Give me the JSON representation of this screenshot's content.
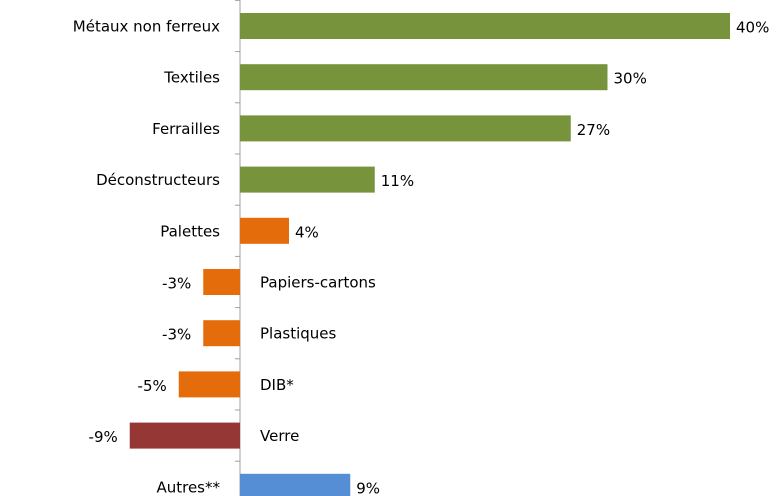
{
  "chart_data": {
    "type": "bar",
    "orientation": "horizontal",
    "categories": [
      "Métaux non ferreux",
      "Textiles",
      "Ferrailles",
      "Déconstructeurs",
      "Palettes",
      "Papiers-cartons",
      "Plastiques",
      "DIB*",
      "Verre",
      "Autres**"
    ],
    "values": [
      40,
      30,
      27,
      11,
      4,
      -3,
      -3,
      -5,
      -9,
      9
    ],
    "value_labels": [
      "40%",
      "30%",
      "27%",
      "11%",
      "4%",
      "-3%",
      "-3%",
      "-5%",
      "-9%",
      "9%"
    ],
    "colors": [
      "#77933c",
      "#77933c",
      "#77933c",
      "#77933c",
      "#e46c0a",
      "#e46c0a",
      "#e46c0a",
      "#e46c0a",
      "#953735",
      "#558ed5"
    ],
    "xlim": [
      -10,
      40
    ]
  }
}
